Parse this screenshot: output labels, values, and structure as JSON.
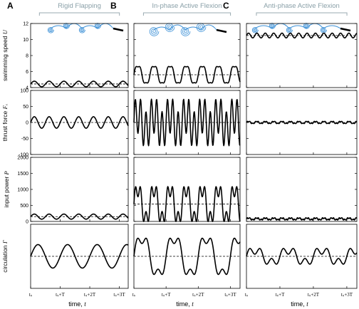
{
  "chart_data": {
    "type": "line",
    "columns": [
      {
        "letter": "A",
        "title": "Rigid Flapping"
      },
      {
        "letter": "B",
        "title": "In-phase Active Flexion"
      },
      {
        "letter": "C",
        "title": "Anti-phase Active Flexion"
      }
    ],
    "rows": [
      {
        "key": "U",
        "label": "swimming speed",
        "symbol": "U",
        "ylim": [
          4,
          12
        ],
        "yticks": [
          4,
          6,
          8,
          10,
          12
        ]
      },
      {
        "key": "F",
        "label": "thrust force",
        "symbol": "Fₓ",
        "ylim": [
          -100,
          100
        ],
        "yticks": [
          -100,
          -50,
          0,
          50,
          100
        ]
      },
      {
        "key": "P",
        "label": "input power",
        "symbol": "P",
        "ylim": [
          0,
          2000
        ],
        "yticks": [
          0,
          500,
          1000,
          1500,
          2000
        ]
      },
      {
        "key": "G",
        "label": "circulation",
        "symbol": "Γ",
        "ylim": [
          -30,
          30
        ],
        "yticks": []
      }
    ],
    "x": {
      "label": "time,",
      "symbol": "t",
      "periods": 3.3,
      "ticks": [
        0,
        1,
        2,
        3
      ],
      "tick_labels": [
        "tₛ",
        "tₛ+T",
        "tₛ+2T",
        "tₛ+3T"
      ]
    },
    "series": {
      "A": {
        "U": {
          "mean": 4.45,
          "amp": 0.35,
          "freq": 2,
          "harm": 0
        },
        "F": {
          "mean": 0,
          "amp": 18,
          "freq": 2,
          "harm": 0
        },
        "P": {
          "mean": 150,
          "amp": 80,
          "freq": 2,
          "harm": 0
        },
        "G": {
          "mean": 0,
          "amp": 11,
          "freq": 1,
          "harm": 0
        }
      },
      "B": {
        "U": {
          "mean": 5.6,
          "amp": 1.4,
          "freq": 2,
          "harm": 0.15
        },
        "F": {
          "mean": 0,
          "amp": 85,
          "freq": 2,
          "harm": 0.7
        },
        "P": {
          "mean": 540,
          "amp": 760,
          "freq": 2,
          "harm": 0.35
        },
        "G": {
          "mean": 0,
          "amp": 24,
          "freq": 1,
          "harm": 0.25
        }
      },
      "C": {
        "U": {
          "mean": 10.5,
          "amp": 0.3,
          "freq": 4,
          "harm": 0
        },
        "F": {
          "mean": 0,
          "amp": 5,
          "freq": 4,
          "harm": 0.3
        },
        "P": {
          "mean": 80,
          "amp": 50,
          "freq": 4,
          "harm": 0.4
        },
        "G": {
          "mean": 0,
          "amp": 10,
          "freq": 1,
          "harm": 0.4
        }
      }
    },
    "dashed_line": "time-averaged mean",
    "colors": {
      "curve": "#000000",
      "frame": "#000000",
      "bracket": "#9aaab0",
      "flapper": "#3a8fd6"
    },
    "grid": false
  }
}
